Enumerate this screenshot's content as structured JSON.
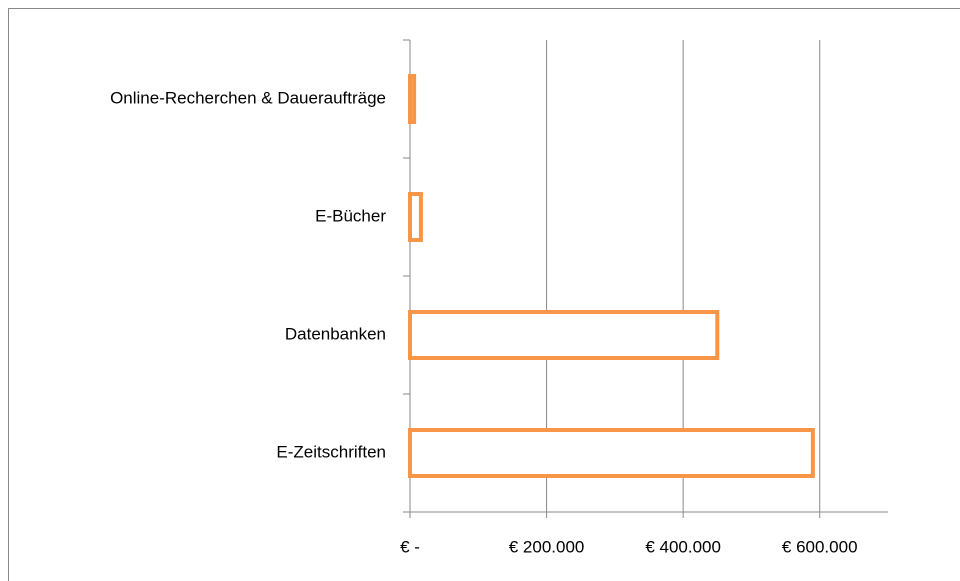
{
  "chart_data": {
    "type": "bar",
    "orientation": "horizontal",
    "categories": [
      "Online-Recherchen & Daueraufträge",
      "E-Bücher",
      "Datenbanken",
      "E-Zeitschriften"
    ],
    "values": [
      6000,
      16000,
      450000,
      590000
    ],
    "color": "#f79646",
    "xlim": [
      0,
      700000
    ],
    "xticks": [
      {
        "value": 0,
        "label": "€ -"
      },
      {
        "value": 200000,
        "label": "€ 200.000"
      },
      {
        "value": 400000,
        "label": "€ 400.000"
      },
      {
        "value": 600000,
        "label": "€ 600.000"
      }
    ],
    "grid": true
  }
}
